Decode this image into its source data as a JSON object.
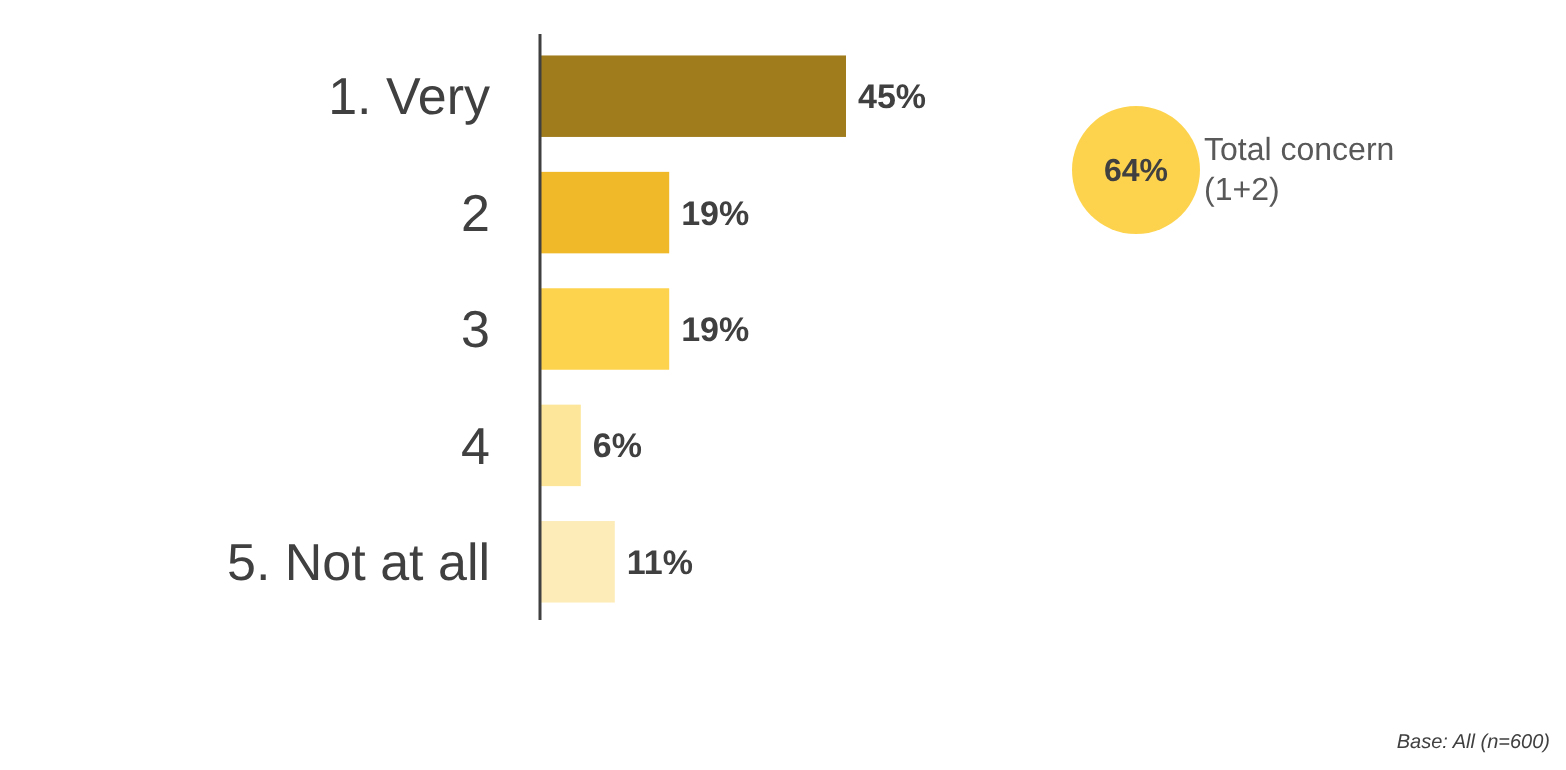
{
  "chart_data": {
    "type": "bar",
    "orientation": "horizontal",
    "categories": [
      "1. Very",
      "2",
      "3",
      "4",
      "5. Not at all"
    ],
    "values": [
      45,
      19,
      19,
      6,
      11
    ],
    "colors": [
      "#a07c1c",
      "#f0b92a",
      "#fdd34d",
      "#fde59a",
      "#fdebb8"
    ],
    "data_labels": true,
    "value_labels": [
      "45%",
      "19%",
      "19%",
      "6%",
      "11%"
    ],
    "annotations": [
      "64%",
      "Total concern (1+2)",
      "Base: All (n=600)"
    ]
  }
}
